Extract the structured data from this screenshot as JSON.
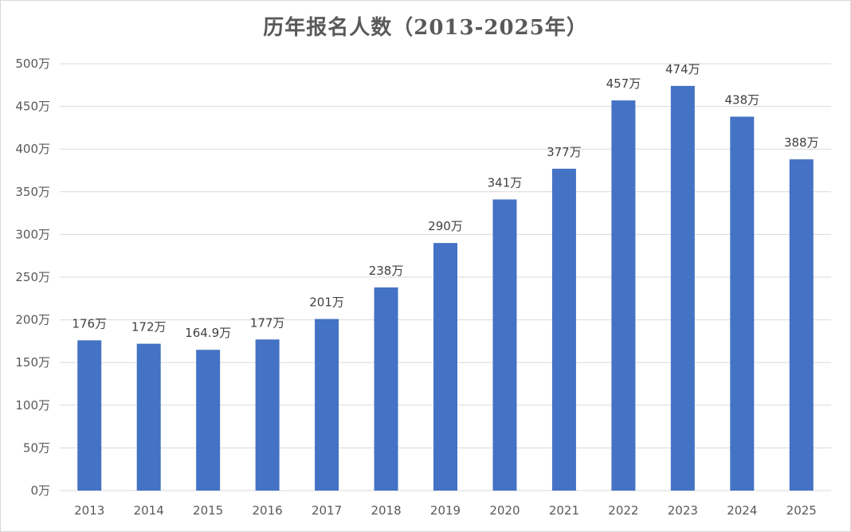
{
  "chart_data": {
    "type": "bar",
    "title": "历年报名人数（2013-2025年）",
    "xlabel": "",
    "ylabel": "",
    "unit": "万",
    "categories": [
      "2013",
      "2014",
      "2015",
      "2016",
      "2017",
      "2018",
      "2019",
      "2020",
      "2021",
      "2022",
      "2023",
      "2024",
      "2025"
    ],
    "values": [
      176,
      172,
      164.9,
      177,
      201,
      238,
      290,
      341,
      377,
      457,
      474,
      438,
      388
    ],
    "data_labels": [
      "176万",
      "172万",
      "164.9万",
      "177万",
      "201万",
      "238万",
      "290万",
      "341万",
      "377万",
      "457万",
      "474万",
      "438万",
      "388万"
    ],
    "ylim": [
      0,
      500
    ],
    "y_ticks": [
      0,
      50,
      100,
      150,
      200,
      250,
      300,
      350,
      400,
      450,
      500
    ],
    "y_tick_labels": [
      "0万",
      "50万",
      "100万",
      "150万",
      "200万",
      "250万",
      "300万",
      "350万",
      "400万",
      "450万",
      "500万"
    ],
    "grid": true,
    "legend": "none",
    "bar_color": "#4472c4",
    "grid_color": "#d9d9d9"
  }
}
